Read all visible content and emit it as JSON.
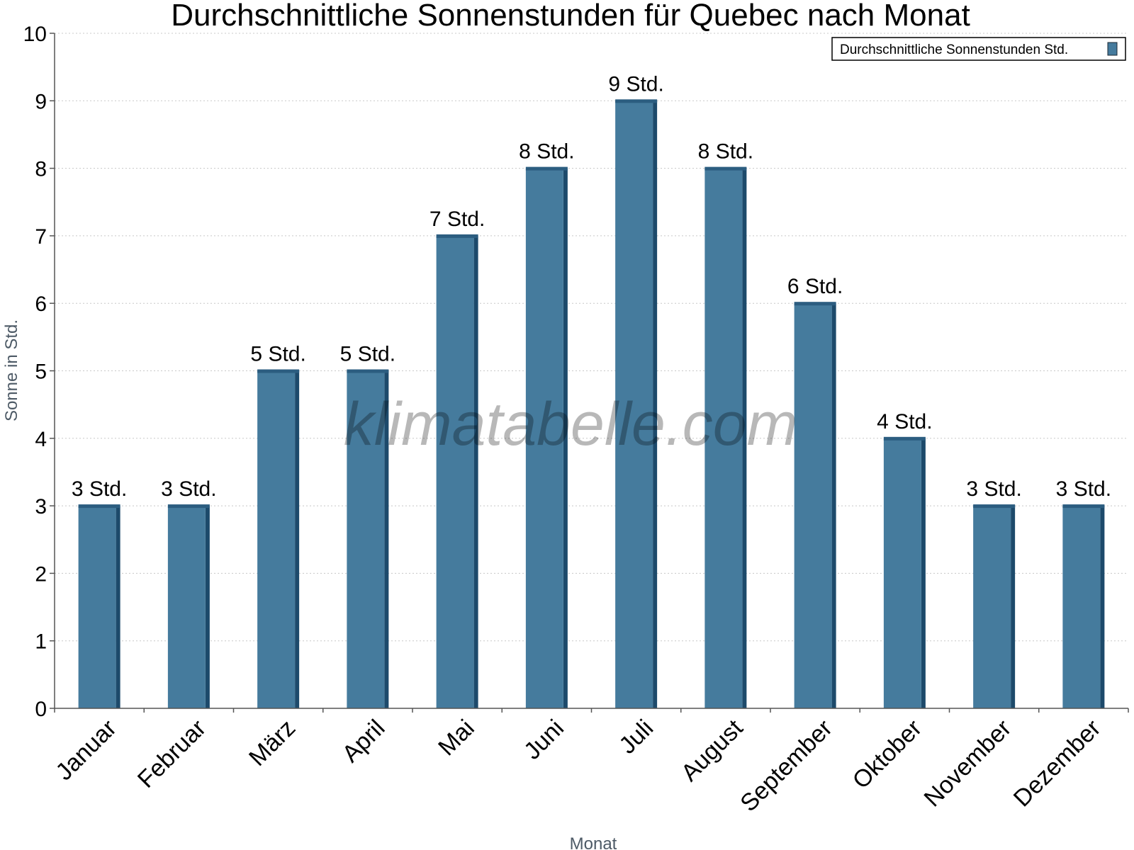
{
  "colors": {
    "bar": "#457b9d",
    "bar_shade": "#1d4a6b",
    "bar_top": "#2c5d80",
    "grid": "#c8c8c8",
    "axis": "#555555"
  },
  "watermark": "klimatabelle.com",
  "chart_data": {
    "type": "bar",
    "title": "Durchschnittliche Sonnenstunden für Quebec nach Monat",
    "xlabel": "Monat",
    "ylabel": "Sonne in Std.",
    "ylim": [
      0,
      10
    ],
    "yticks": [
      "0",
      "1",
      "2",
      "3",
      "4",
      "5",
      "6",
      "7",
      "8",
      "9",
      "10"
    ],
    "grid": true,
    "legend_position": "top-right",
    "categories": [
      "Januar",
      "Februar",
      "März",
      "April",
      "Mai",
      "Juni",
      "Juli",
      "August",
      "September",
      "Oktober",
      "November",
      "Dezember"
    ],
    "series": [
      {
        "name": "Durchschnittliche Sonnenstunden Std.",
        "values": [
          3,
          3,
          5,
          5,
          7,
          8,
          9,
          8,
          6,
          4,
          3,
          3
        ],
        "labels": [
          "3 Std.",
          "3 Std.",
          "5 Std.",
          "5 Std.",
          "7 Std.",
          "8 Std.",
          "9 Std.",
          "8 Std.",
          "6 Std.",
          "4 Std.",
          "3 Std.",
          "3 Std."
        ]
      }
    ]
  }
}
